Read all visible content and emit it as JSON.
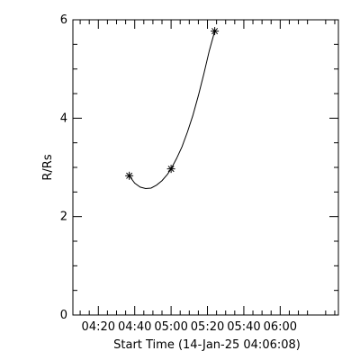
{
  "chart_data": {
    "type": "line",
    "title": "",
    "xlabel": "Start Time (14-Jan-25 04:06:08)",
    "ylabel": "R/Rs",
    "xlim": [
      "04:06",
      "06:32"
    ],
    "ylim": [
      0,
      6
    ],
    "grid": false,
    "x_ticks": [
      "04:20",
      "04:40",
      "05:00",
      "05:20",
      "05:40",
      "06:00"
    ],
    "y_ticks": [
      "0",
      "2",
      "4",
      "6"
    ],
    "series": [
      {
        "points": [
          {
            "x": "04:37",
            "y": 2.83
          },
          {
            "x": "05:00",
            "y": 2.97
          },
          {
            "x": "05:24",
            "y": 5.77
          }
        ],
        "curve": [
          {
            "x": "04:37",
            "y": 2.83
          },
          {
            "x": "04:40",
            "y": 2.68
          },
          {
            "x": "04:43",
            "y": 2.6
          },
          {
            "x": "04:46",
            "y": 2.57
          },
          {
            "x": "04:49",
            "y": 2.58
          },
          {
            "x": "04:52",
            "y": 2.64
          },
          {
            "x": "04:55",
            "y": 2.73
          },
          {
            "x": "04:58",
            "y": 2.86
          },
          {
            "x": "05:00",
            "y": 2.97
          },
          {
            "x": "05:03",
            "y": 3.18
          },
          {
            "x": "05:06",
            "y": 3.42
          },
          {
            "x": "05:09",
            "y": 3.72
          },
          {
            "x": "05:12",
            "y": 4.06
          },
          {
            "x": "05:15",
            "y": 4.46
          },
          {
            "x": "05:18",
            "y": 4.9
          },
          {
            "x": "05:21",
            "y": 5.37
          },
          {
            "x": "05:24",
            "y": 5.77
          }
        ]
      }
    ]
  }
}
